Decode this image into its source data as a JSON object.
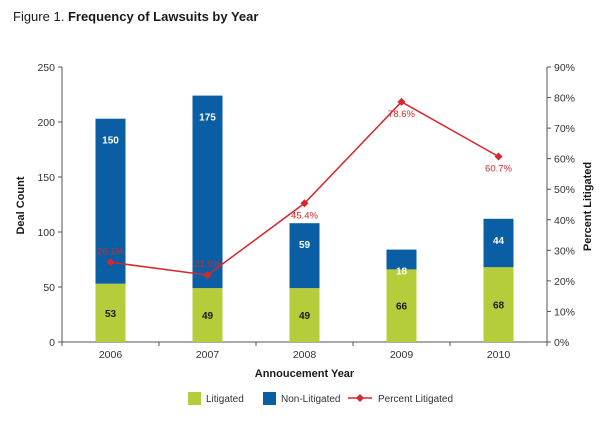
{
  "figure": {
    "prefix": "Figure 1.",
    "title": "Frequency of Lawsuits by Year"
  },
  "chart_data": {
    "type": "bar",
    "stacked": true,
    "categories": [
      "2006",
      "2007",
      "2008",
      "2009",
      "2010"
    ],
    "series": [
      {
        "name": "Litigated",
        "values": [
          53,
          49,
          49,
          66,
          68
        ],
        "color": "#b5cd3a",
        "label_color": "#1a1a1a"
      },
      {
        "name": "Non-Litigated",
        "values": [
          150,
          175,
          59,
          18,
          44
        ],
        "color": "#0a5ea3",
        "label_color": "#ffffff"
      }
    ],
    "line_series": {
      "name": "Percent Litigated",
      "values": [
        26.1,
        21.9,
        45.4,
        78.6,
        60.7
      ],
      "labels": [
        "26.1%",
        "21.9%",
        "45.4%",
        "78.6%",
        "60.7%"
      ],
      "color": "#d7262c",
      "axis": "right"
    },
    "xlabel": "Annoucement Year",
    "ylabel": "Deal Count",
    "y2label": "Percent Litigated",
    "ylim": [
      0,
      250
    ],
    "yticks": [
      0,
      50,
      100,
      150,
      200,
      250
    ],
    "y2lim": [
      0,
      90
    ],
    "y2ticks": [
      "0%",
      "10%",
      "20%",
      "30%",
      "40%",
      "50%",
      "60%",
      "70%",
      "80%",
      "90%"
    ],
    "legend_position": "bottom",
    "grid": false
  }
}
